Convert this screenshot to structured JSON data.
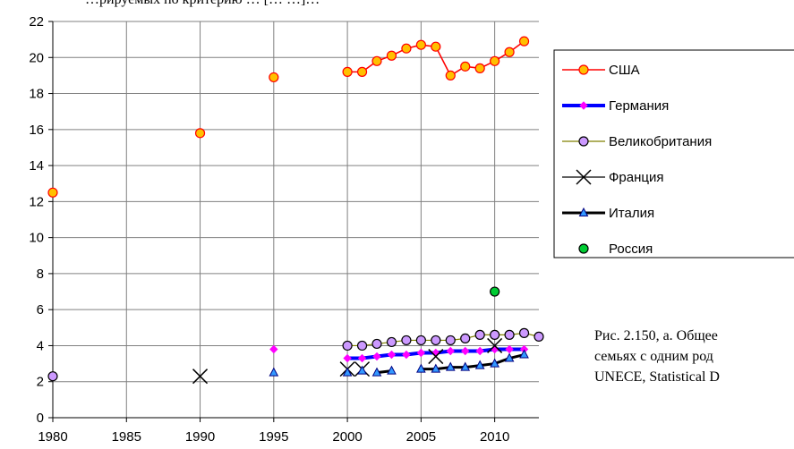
{
  "top_text": "…рируемых по критерию … [… …]…",
  "caption": {
    "line1": "Рис. 2.150, а. Общее",
    "line2": "семьях с одним род",
    "line3": "UNECE, Statistical D"
  },
  "chart_data": {
    "type": "line",
    "title": "",
    "xlabel": "",
    "ylabel": "",
    "xlim": [
      1980,
      2013
    ],
    "ylim": [
      0,
      22
    ],
    "xticks": [
      1980,
      1985,
      1990,
      1995,
      2000,
      2005,
      2010
    ],
    "yticks": [
      0,
      2,
      4,
      6,
      8,
      10,
      12,
      14,
      16,
      18,
      20,
      22
    ],
    "grid": true,
    "legend_position": "right",
    "series": [
      {
        "name": "США",
        "color": "#ff0000",
        "marker": "circle",
        "marker_fill": "#ffc000",
        "marker_stroke": "#ff0000",
        "segments": [
          [
            [
              1980,
              12.5
            ]
          ],
          [
            [
              1990,
              15.8
            ]
          ],
          [
            [
              1995,
              18.9
            ]
          ],
          [
            [
              2000,
              19.2
            ],
            [
              2001,
              19.2
            ],
            [
              2002,
              19.8
            ],
            [
              2003,
              20.1
            ],
            [
              2004,
              20.5
            ],
            [
              2005,
              20.7
            ],
            [
              2006,
              20.6
            ],
            [
              2007,
              19.0
            ],
            [
              2008,
              19.5
            ],
            [
              2009,
              19.4
            ],
            [
              2010,
              19.8
            ],
            [
              2011,
              20.3
            ],
            [
              2012,
              20.9
            ]
          ]
        ]
      },
      {
        "name": "Германия",
        "color": "#0000ff",
        "marker": "diamond",
        "marker_fill": "#ff00ff",
        "marker_stroke": "#ff00ff",
        "segments": [
          [
            [
              1995,
              3.8
            ]
          ],
          [
            [
              2000,
              3.3
            ],
            [
              2001,
              3.3
            ],
            [
              2002,
              3.4
            ],
            [
              2003,
              3.5
            ],
            [
              2004,
              3.5
            ],
            [
              2005,
              3.6
            ],
            [
              2006,
              3.6
            ],
            [
              2007,
              3.7
            ],
            [
              2008,
              3.7
            ],
            [
              2009,
              3.7
            ],
            [
              2010,
              3.8
            ],
            [
              2011,
              3.8
            ],
            [
              2012,
              3.8
            ]
          ]
        ]
      },
      {
        "name": "Великобритания",
        "color": "#808000",
        "marker": "circle",
        "marker_fill": "#cc99ff",
        "marker_stroke": "#000000",
        "segments": [
          [
            [
              1980,
              2.3
            ]
          ],
          [
            [
              2000,
              4.0
            ],
            [
              2001,
              4.0
            ],
            [
              2002,
              4.1
            ],
            [
              2003,
              4.2
            ],
            [
              2004,
              4.3
            ],
            [
              2005,
              4.3
            ],
            [
              2006,
              4.3
            ],
            [
              2007,
              4.3
            ],
            [
              2008,
              4.4
            ],
            [
              2009,
              4.6
            ],
            [
              2010,
              4.6
            ],
            [
              2011,
              4.6
            ],
            [
              2012,
              4.7
            ],
            [
              2013,
              4.5
            ]
          ]
        ]
      },
      {
        "name": "Франция",
        "color": "#000000",
        "marker": "x",
        "marker_fill": "none",
        "marker_stroke": "#000000",
        "segments": [
          [
            [
              1990,
              2.3
            ]
          ],
          [
            [
              2000,
              2.7
            ]
          ],
          [
            [
              2001,
              2.7
            ]
          ],
          [
            [
              2006,
              3.4
            ]
          ],
          [
            [
              2010,
              4.0
            ]
          ]
        ]
      },
      {
        "name": "Италия",
        "color": "#000000",
        "marker": "triangle",
        "marker_fill": "#3399ff",
        "marker_stroke": "#000080",
        "segments": [
          [
            [
              1995,
              2.5
            ]
          ],
          [
            [
              2000,
              2.5
            ]
          ],
          [
            [
              2001,
              2.6
            ]
          ],
          [
            [
              2002,
              2.5
            ],
            [
              2003,
              2.6
            ]
          ],
          [
            [
              2005,
              2.7
            ],
            [
              2006,
              2.7
            ],
            [
              2007,
              2.8
            ],
            [
              2008,
              2.8
            ],
            [
              2009,
              2.9
            ],
            [
              2010,
              3.0
            ],
            [
              2011,
              3.3
            ],
            [
              2012,
              3.5
            ]
          ]
        ]
      },
      {
        "name": "Россия",
        "color": "#00a000",
        "marker": "circle",
        "marker_fill": "#00cc33",
        "marker_stroke": "#000000",
        "segments": [
          [
            [
              2010,
              7.0
            ]
          ]
        ]
      }
    ]
  }
}
